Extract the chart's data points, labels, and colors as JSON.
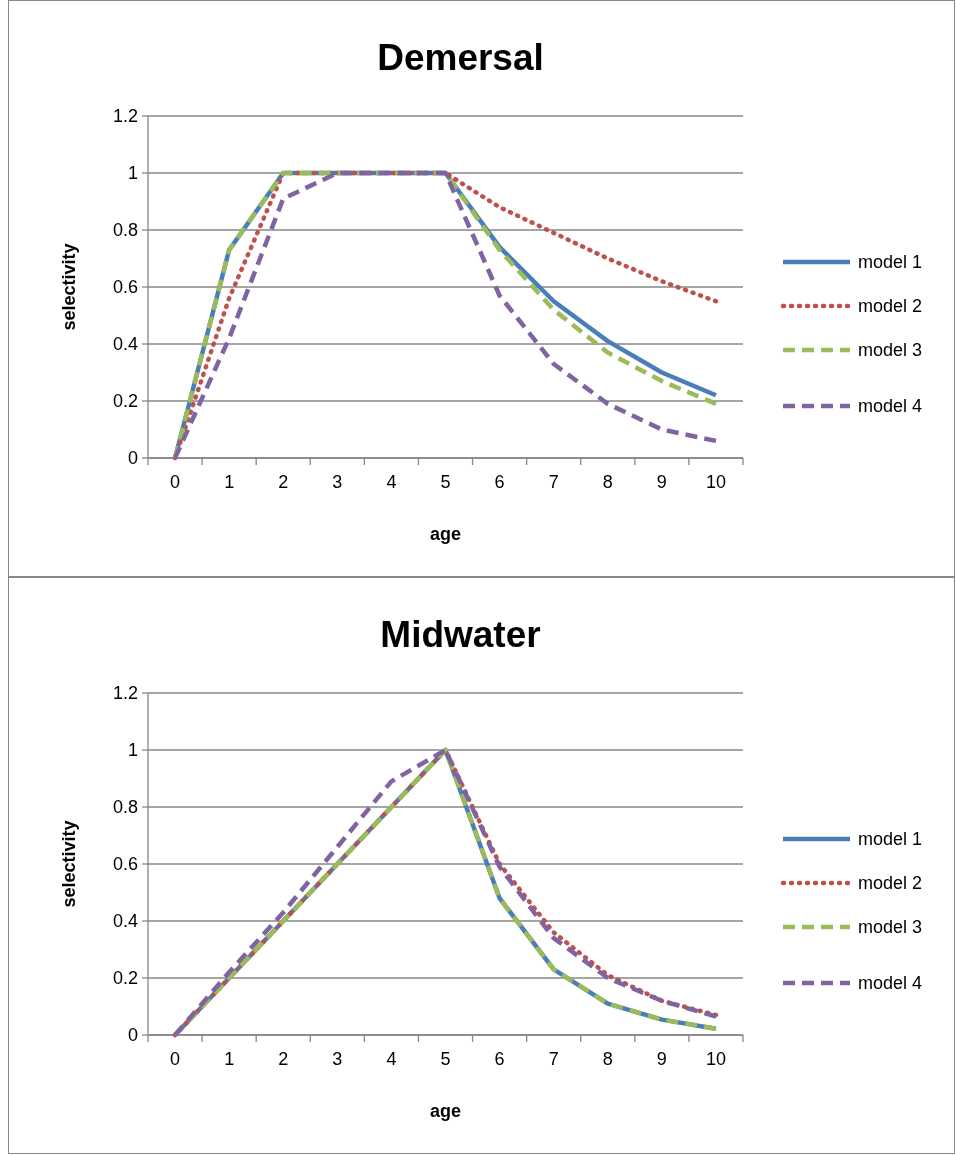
{
  "chart_data": [
    {
      "type": "line",
      "title": "Demersal",
      "xlabel": "age",
      "ylabel": "selectivity",
      "categories": [
        "0",
        "1",
        "2",
        "3",
        "4",
        "5",
        "6",
        "7",
        "8",
        "9",
        "10"
      ],
      "ylim": [
        0,
        1.2
      ],
      "yticks": [
        0,
        0.2,
        0.4,
        0.6,
        0.8,
        1,
        1.2
      ],
      "grid": "y",
      "legend": "right",
      "marker": "none",
      "series": [
        {
          "name": "model 1",
          "color": "#4a7ebb",
          "line_style": "solid",
          "values": [
            0,
            0.73,
            1,
            1,
            1,
            1,
            0.74,
            0.55,
            0.41,
            0.3,
            0.22
          ]
        },
        {
          "name": "model 2",
          "color": "#c0504d",
          "line_style": "dotted",
          "values": [
            0,
            0.56,
            1,
            1,
            1,
            1,
            0.88,
            0.79,
            0.7,
            0.62,
            0.55
          ]
        },
        {
          "name": "model 3",
          "color": "#9bbb59",
          "line_style": "dashed",
          "values": [
            0,
            0.73,
            1,
            1,
            1,
            1,
            0.73,
            0.52,
            0.37,
            0.27,
            0.19
          ]
        },
        {
          "name": "model 4",
          "color": "#8064a2",
          "line_style": "dashed",
          "values": [
            0,
            0.42,
            0.91,
            1,
            1,
            1,
            0.57,
            0.33,
            0.19,
            0.1,
            0.06
          ]
        }
      ]
    },
    {
      "type": "line",
      "title": "Midwater",
      "xlabel": "age",
      "ylabel": "selectivity",
      "categories": [
        "0",
        "1",
        "2",
        "3",
        "4",
        "5",
        "6",
        "7",
        "8",
        "9",
        "10"
      ],
      "ylim": [
        0,
        1.2
      ],
      "yticks": [
        0,
        0.2,
        0.4,
        0.6,
        0.8,
        1,
        1.2
      ],
      "grid": "y",
      "legend": "right",
      "marker": "none",
      "series": [
        {
          "name": "model 1",
          "color": "#4a7ebb",
          "line_style": "solid",
          "values": [
            0,
            0.2,
            0.4,
            0.6,
            0.8,
            1,
            0.48,
            0.23,
            0.11,
            0.054,
            0.022
          ]
        },
        {
          "name": "model 2",
          "color": "#c0504d",
          "line_style": "dotted",
          "values": [
            0,
            0.2,
            0.4,
            0.6,
            0.8,
            1,
            0.6,
            0.36,
            0.21,
            0.12,
            0.07
          ]
        },
        {
          "name": "model 3",
          "color": "#9bbb59",
          "line_style": "dashed",
          "values": [
            0,
            0.2,
            0.4,
            0.6,
            0.8,
            1,
            0.48,
            0.23,
            0.11,
            0.054,
            0.022
          ]
        },
        {
          "name": "model 4",
          "color": "#8064a2",
          "line_style": "dashed",
          "values": [
            0,
            0.22,
            0.43,
            0.66,
            0.89,
            1,
            0.59,
            0.34,
            0.2,
            0.12,
            0.065
          ]
        }
      ]
    }
  ]
}
